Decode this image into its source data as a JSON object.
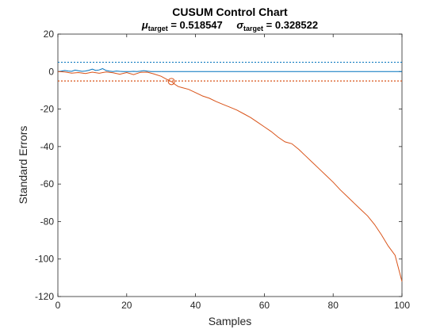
{
  "chart_data": {
    "type": "line",
    "title": "CUSUM  Control  Chart",
    "subtitle": {
      "mu_symbol": "μ",
      "mu_sub": "target",
      "mu_value": "  =  0.518547",
      "sigma_symbol": "σ",
      "sigma_sub": "target",
      "sigma_value": "  =  0.328522"
    },
    "xlabel": "Samples",
    "ylabel": "Standard Errors",
    "xlim": [
      0,
      100
    ],
    "ylim": [
      -120,
      20
    ],
    "xticks": [
      0,
      20,
      40,
      60,
      80,
      100
    ],
    "yticks": [
      20,
      0,
      -20,
      -40,
      -60,
      -80,
      -100,
      -120
    ],
    "grid": false,
    "colors": {
      "upper": "#0072BD",
      "lower": "#D95319",
      "axis": "#262626"
    },
    "upper_limit": 5,
    "lower_limit": -5,
    "violation_marker": {
      "x": 33,
      "y": -5.3
    },
    "series": [
      {
        "x": [
          0,
          1,
          2,
          3,
          4,
          5,
          6,
          7,
          8,
          9,
          10,
          11,
          12,
          13,
          14,
          15,
          16,
          17,
          18,
          19,
          20,
          21,
          22,
          23,
          24,
          25,
          26,
          27,
          28,
          29,
          30
        ],
        "y": [
          0,
          0.2,
          0.6,
          0.3,
          0.1,
          0.8,
          0.4,
          0.1,
          0.3,
          0.7,
          1.3,
          0.6,
          0.9,
          1.6,
          0.6,
          0.2,
          0,
          0.3,
          0.1,
          0,
          0,
          0,
          0.1,
          0,
          0.2,
          0.5,
          0.2,
          0,
          0,
          0,
          0
        ]
      },
      {
        "x": [
          0,
          2,
          4,
          6,
          8,
          10,
          12,
          14,
          16,
          18,
          20,
          22,
          24,
          26,
          28,
          30,
          32,
          33,
          34,
          35,
          36,
          38,
          40,
          42,
          44,
          46,
          48,
          50,
          52,
          54,
          56,
          58,
          60,
          62,
          64,
          66,
          68,
          70,
          72,
          74,
          76,
          78,
          80,
          82,
          84,
          86,
          88,
          90,
          92,
          94,
          96,
          98,
          100
        ],
        "y": [
          0,
          -0.2,
          -0.8,
          -0.5,
          -1.0,
          -0.3,
          -0.9,
          -0.2,
          -0.6,
          -1.4,
          -0.5,
          -1.6,
          -0.4,
          -0.3,
          -1.3,
          -2.5,
          -4.5,
          -5.3,
          -6.8,
          -8.0,
          -8.5,
          -9.5,
          -11.2,
          -13.0,
          -14.2,
          -16.0,
          -17.5,
          -19.0,
          -20.5,
          -22.5,
          -24.5,
          -27.0,
          -29.5,
          -32.0,
          -35.0,
          -37.5,
          -38.5,
          -41.5,
          -45.0,
          -48.5,
          -52.0,
          -55.5,
          -59.0,
          -63.0,
          -66.5,
          -70.0,
          -73.5,
          -77.0,
          -81.5,
          -87.0,
          -93.0,
          -98.0,
          -112.0
        ]
      }
    ]
  }
}
